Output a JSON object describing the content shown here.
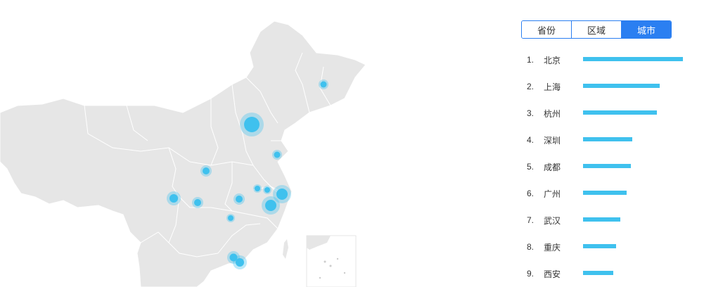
{
  "tabs": [
    {
      "label": "省份",
      "active": false
    },
    {
      "label": "区域",
      "active": false
    },
    {
      "label": "城市",
      "active": true
    }
  ],
  "ranking": [
    {
      "num": "1.",
      "name": "北京",
      "value": 100
    },
    {
      "num": "2.",
      "name": "上海",
      "value": 77
    },
    {
      "num": "3.",
      "name": "杭州",
      "value": 74
    },
    {
      "num": "4.",
      "name": "深圳",
      "value": 49
    },
    {
      "num": "5.",
      "name": "成都",
      "value": 48
    },
    {
      "num": "6.",
      "name": "广州",
      "value": 44
    },
    {
      "num": "7.",
      "name": "武汉",
      "value": 37
    },
    {
      "num": "8.",
      "name": "重庆",
      "value": 33
    },
    {
      "num": "9.",
      "name": "西安",
      "value": 30
    }
  ],
  "colors": {
    "accent": "#2b7ff1",
    "bar": "#3fc1ee",
    "map_fill": "#e6e6e6",
    "map_border": "#ffffff",
    "bubble": "#3fc1ee"
  }
}
